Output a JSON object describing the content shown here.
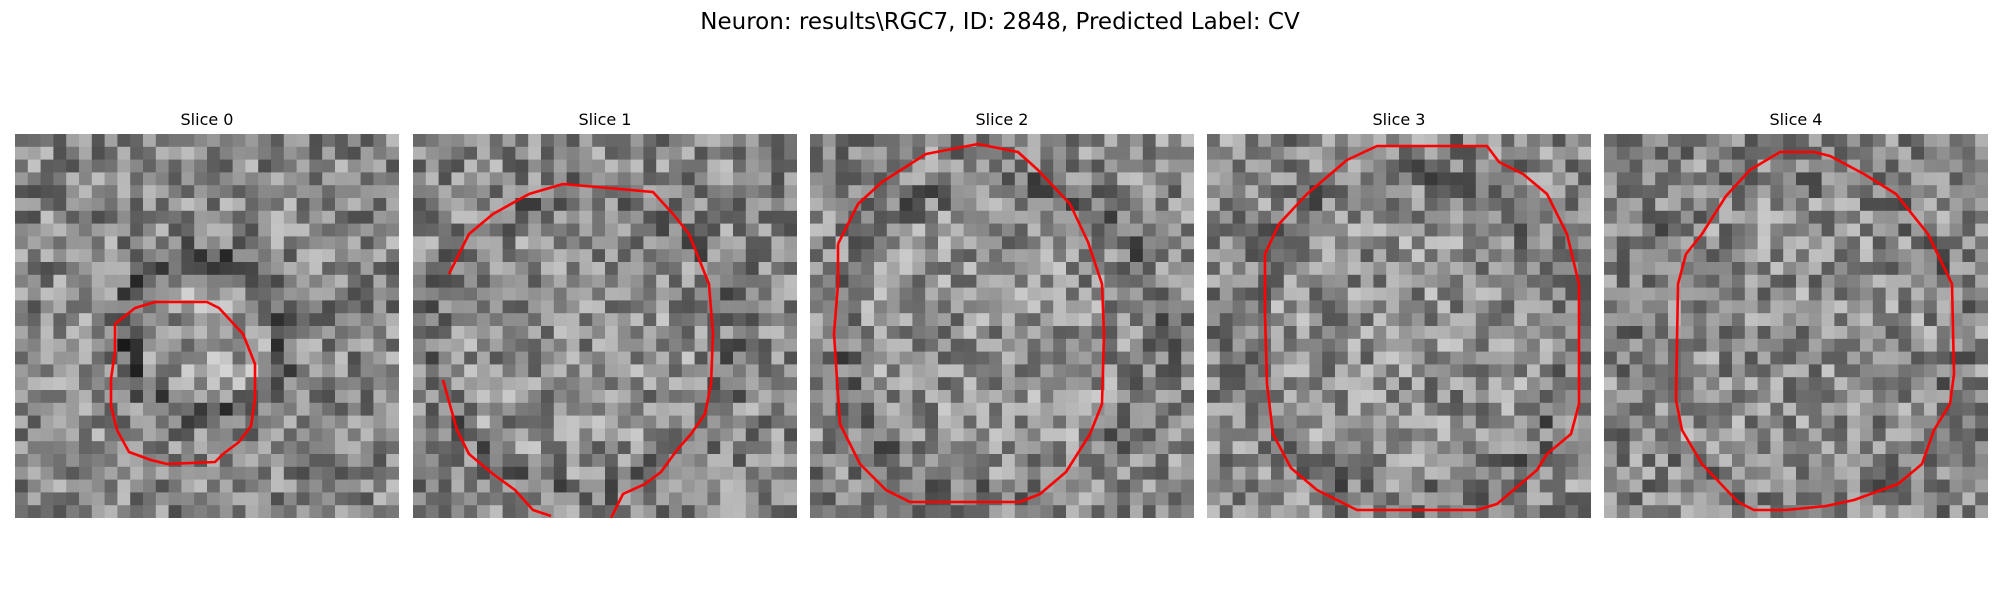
{
  "figure": {
    "title": "Neuron: results\\RGC7, ID: 2848, Predicted Label: CV"
  },
  "panels": [
    {
      "title": "Slice 0"
    },
    {
      "title": "Slice 1"
    },
    {
      "title": "Slice 2"
    },
    {
      "title": "Slice 3"
    },
    {
      "title": "Slice 4"
    }
  ],
  "colors": {
    "contour": "#ff0000"
  },
  "image": {
    "colormap": "gray",
    "grid_size": 30
  }
}
